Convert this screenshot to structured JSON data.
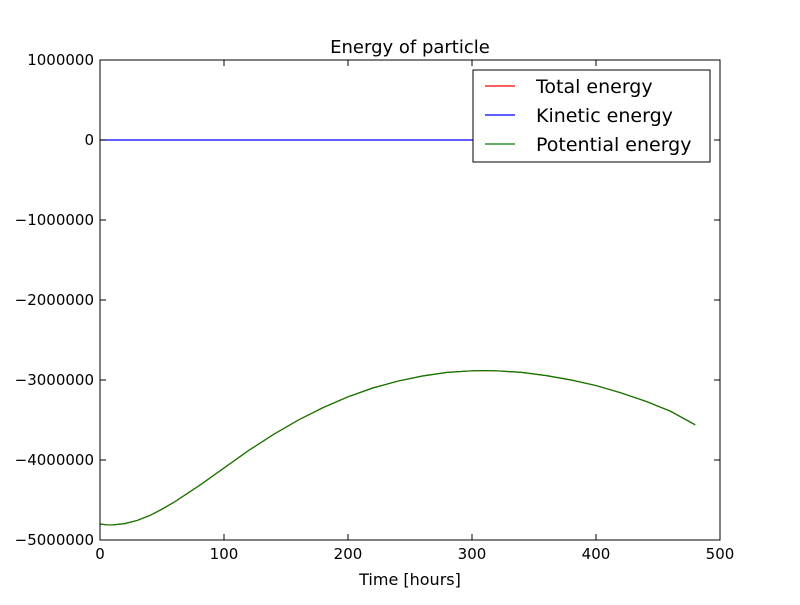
{
  "chart_data": {
    "type": "line",
    "title": "Energy of particle",
    "xlabel": "Time [hours]",
    "ylabel": "",
    "xlim": [
      0,
      500
    ],
    "ylim": [
      -5000000,
      1000000
    ],
    "xticks": [
      0,
      100,
      200,
      300,
      400,
      500
    ],
    "xtick_labels": [
      "0",
      "100",
      "200",
      "300",
      "400",
      "500"
    ],
    "yticks": [
      1000000,
      0,
      -1000000,
      -2000000,
      -3000000,
      -4000000,
      -5000000
    ],
    "ytick_labels": [
      "1000000",
      "0",
      "−1000000",
      "−2000000",
      "−3000000",
      "−4000000",
      "−5000000"
    ],
    "grid": false,
    "legend_position": "top-right",
    "x": [
      0,
      5,
      10,
      20,
      30,
      40,
      50,
      60,
      80,
      100,
      120,
      140,
      160,
      180,
      200,
      220,
      240,
      260,
      280,
      300,
      310,
      320,
      340,
      360,
      380,
      400,
      420,
      440,
      460,
      480
    ],
    "series": [
      {
        "name": "Total energy",
        "color": "#ff0000",
        "values": [
          -4800000,
          -4810000,
          -4812000,
          -4795000,
          -4755000,
          -4695000,
          -4615000,
          -4525000,
          -4320000,
          -4100000,
          -3880000,
          -3680000,
          -3500000,
          -3345000,
          -3210000,
          -3100000,
          -3015000,
          -2950000,
          -2905000,
          -2885000,
          -2882000,
          -2885000,
          -2905000,
          -2945000,
          -3000000,
          -3070000,
          -3160000,
          -3265000,
          -3390000,
          -3560000
        ]
      },
      {
        "name": "Kinetic energy",
        "color": "#0000ff",
        "values": [
          0,
          0,
          0,
          0,
          0,
          0,
          0,
          0,
          0,
          0,
          0,
          0,
          0,
          0,
          0,
          0,
          0,
          0,
          0,
          0,
          0,
          0,
          0,
          0,
          0,
          0,
          0,
          0,
          0,
          0
        ]
      },
      {
        "name": "Potential energy",
        "color": "#008000",
        "values": [
          -4800000,
          -4810000,
          -4812000,
          -4795000,
          -4755000,
          -4695000,
          -4615000,
          -4525000,
          -4320000,
          -4100000,
          -3880000,
          -3680000,
          -3500000,
          -3345000,
          -3210000,
          -3100000,
          -3015000,
          -2950000,
          -2905000,
          -2885000,
          -2882000,
          -2885000,
          -2905000,
          -2945000,
          -3000000,
          -3070000,
          -3160000,
          -3265000,
          -3390000,
          -3560000
        ]
      }
    ]
  }
}
